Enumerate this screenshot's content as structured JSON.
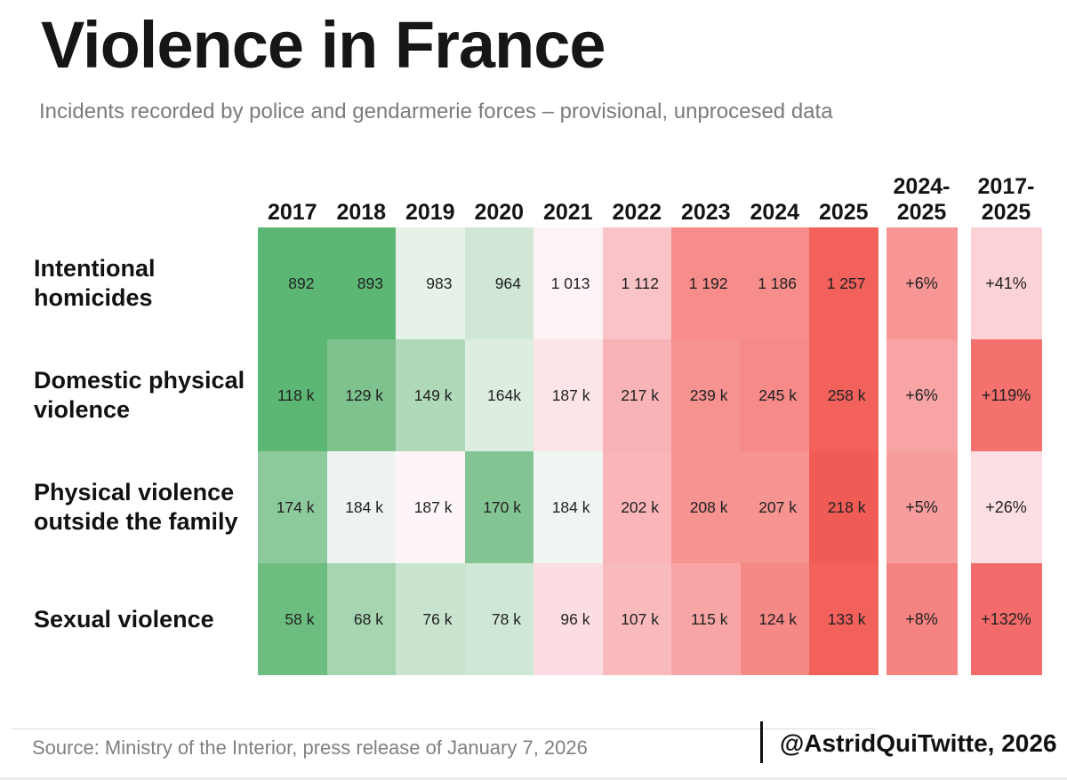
{
  "title": "Violence in France",
  "subtitle": "Incidents recorded by police and gendarmerie forces – provisional, unprocesed data",
  "footer": {
    "source": "Source: Ministry of the Interior, press release of January 7, 2026",
    "attribution": "@AstridQuiTwitte, 2026"
  },
  "chart_data": {
    "type": "heatmap",
    "title": "Violence in France",
    "subtitle": "Incidents recorded by police and gendarmerie forces – provisional, unprocesed data",
    "columns": [
      "2017",
      "2018",
      "2019",
      "2020",
      "2021",
      "2022",
      "2023",
      "2024",
      "2025"
    ],
    "summary_columns": [
      {
        "line1": "2024-",
        "line2": "2025"
      },
      {
        "line1": "2017-",
        "line2": "2025"
      }
    ],
    "legend": "green = lower values, red = higher values",
    "rows": [
      {
        "label": "Intentional homicides",
        "values": [
          "892",
          "893",
          "983",
          "964",
          "1 013",
          "1 112",
          "1 192",
          "1 186",
          "1 257"
        ],
        "cell_colors": [
          "#5cb674",
          "#5cb674",
          "#e6f1e7",
          "#d0e7d5",
          "#fdf3f5",
          "#f9c3c7",
          "#f68d8a",
          "#f68d8a",
          "#f2615c"
        ],
        "changes": [
          "+6%",
          "+41%"
        ],
        "change_colors": [
          "#f79694",
          "#fbd2d5"
        ]
      },
      {
        "label": "Domestic physical violence",
        "values": [
          "118 k",
          "129 k",
          "149 k",
          "164k",
          "187 k",
          "217 k",
          "239 k",
          "245 k",
          "258 k"
        ],
        "cell_colors": [
          "#5cb674",
          "#7ec28d",
          "#afd9b8",
          "#ddeee0",
          "#fce4e8",
          "#f8b3b6",
          "#f69290",
          "#f58a88",
          "#f2615c"
        ],
        "changes": [
          "+6%",
          "+119%"
        ],
        "change_colors": [
          "#f8a4a5",
          "#f4716e"
        ]
      },
      {
        "label": "Physical violence outside the family",
        "values": [
          "174 k",
          "184 k",
          "187 k",
          "170 k",
          "184 k",
          "202 k",
          "208 k",
          "207 k",
          "218 k"
        ],
        "cell_colors": [
          "#8cc99b",
          "#eef3ef",
          "#fdf5f7",
          "#83c592",
          "#eff5f1",
          "#f9b5b8",
          "#f69492",
          "#f69492",
          "#f15b56"
        ],
        "changes": [
          "+5%",
          "+26%"
        ],
        "change_colors": [
          "#f89d9e",
          "#fcdfe2"
        ]
      },
      {
        "label": "Sexual violence",
        "values": [
          "58 k",
          "68 k",
          "76 k",
          "78 k",
          "96 k",
          "107 k",
          "115 k",
          "124 k",
          "133 k"
        ],
        "cell_colors": [
          "#6cbd7f",
          "#a6d5b0",
          "#c8e4ce",
          "#cfe7d5",
          "#fbdde3",
          "#f9babd",
          "#f8a5a5",
          "#f58986",
          "#f2615c"
        ],
        "changes": [
          "+8%",
          "+132%"
        ],
        "change_colors": [
          "#f58381",
          "#f36b6b"
        ]
      }
    ]
  }
}
